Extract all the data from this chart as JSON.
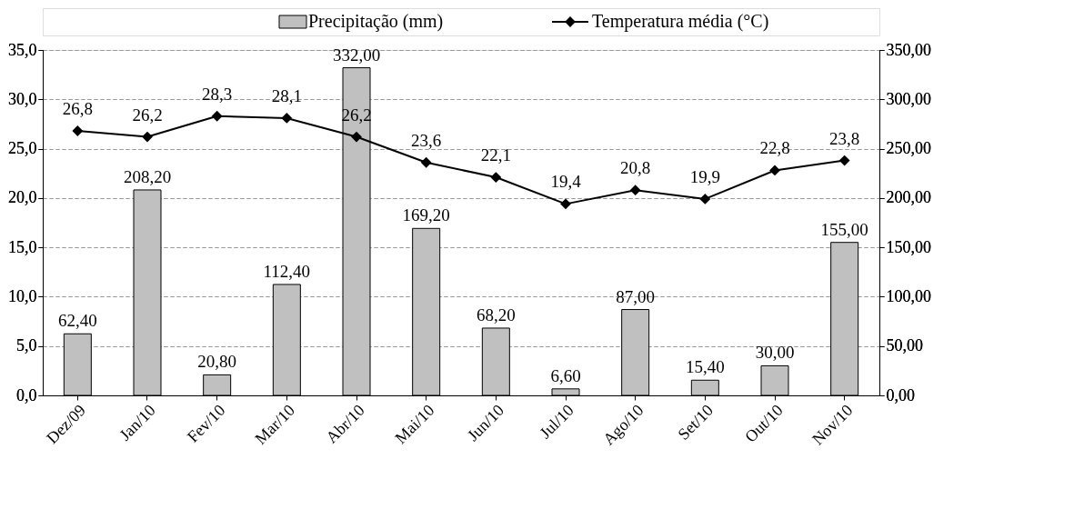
{
  "chart_data": {
    "type": "bar",
    "categories": [
      "Dez/09",
      "Jan/10",
      "Fev/10",
      "Mar/10",
      "Abr/10",
      "Mai/10",
      "Jun/10",
      "Jul/10",
      "Ago/10",
      "Set/10",
      "Out/10",
      "Nov/10"
    ],
    "series": [
      {
        "name": "Precipitação (mm)",
        "axis": "y2",
        "color": "#c0c0c0",
        "values": [
          62.4,
          208.2,
          20.8,
          112.4,
          332.0,
          169.2,
          68.2,
          6.6,
          87.0,
          15.4,
          30.0,
          155.0
        ],
        "value_labels": [
          "62,40",
          "208,20",
          "20,80",
          "112,40",
          "332,00",
          "169,20",
          "68,20",
          "6,60",
          "87,00",
          "15,40",
          "30,00",
          "155,00"
        ]
      },
      {
        "name": "Temperatura média (°C)",
        "type": "line",
        "axis": "y",
        "color": "#000000",
        "marker": "diamond",
        "values": [
          26.8,
          26.2,
          28.3,
          28.1,
          26.2,
          23.6,
          22.1,
          19.4,
          20.8,
          19.9,
          22.8,
          23.8
        ],
        "value_labels": [
          "26,8",
          "26,2",
          "28,3",
          "28,1",
          "26,2",
          "23,6",
          "22,1",
          "19,4",
          "20,8",
          "19,9",
          "22,8",
          "23,8"
        ]
      }
    ],
    "ylim": [
      0,
      35
    ],
    "yticks": [
      {
        "value": 0,
        "label": "0,0"
      },
      {
        "value": 5,
        "label": "5,0"
      },
      {
        "value": 10,
        "label": "10,0"
      },
      {
        "value": 15,
        "label": "15,0"
      },
      {
        "value": 20,
        "label": "20,0"
      },
      {
        "value": 25,
        "label": "25,0"
      },
      {
        "value": 30,
        "label": "30,0"
      },
      {
        "value": 35,
        "label": "35,0"
      }
    ],
    "y2lim": [
      0,
      350
    ],
    "y2ticks": [
      {
        "value": 0,
        "label": "0,00"
      },
      {
        "value": 50,
        "label": "50,00"
      },
      {
        "value": 100,
        "label": "100,00"
      },
      {
        "value": 150,
        "label": "150,00"
      },
      {
        "value": 200,
        "label": "200,00"
      },
      {
        "value": 250,
        "label": "250,00"
      },
      {
        "value": 300,
        "label": "300,00"
      },
      {
        "value": 350,
        "label": "350,00"
      }
    ],
    "grid": "y",
    "legend": "top"
  }
}
